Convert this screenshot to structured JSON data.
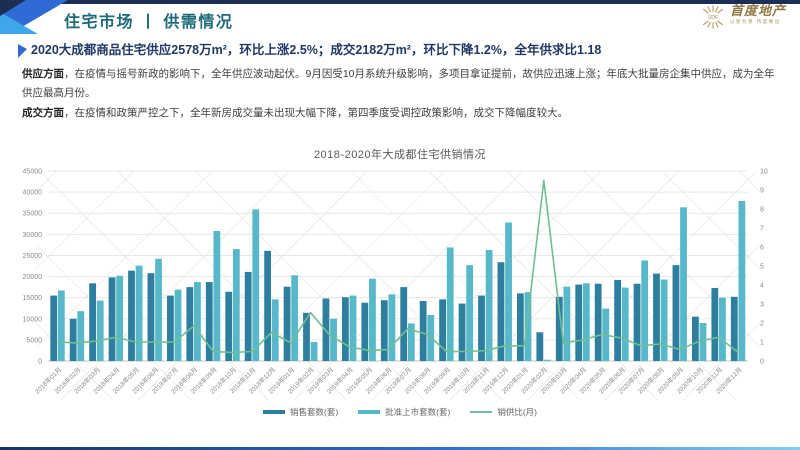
{
  "header": {
    "title": "住宅市场 丨 供需情况",
    "logo": {
      "emblem_text": "SDF",
      "name": "首度地产",
      "tagline": "以智为善  持度致远"
    }
  },
  "headline": "2020大成都商品住宅供应2578万m²，环比上涨2.5%；成交2182万m²，环比下降1.2%，全年供求比1.18",
  "paragraphs": [
    {
      "lead": "供应方面",
      "text": "，在疫情与摇号新政的影响下，全年供应波动起伏。9月因受10月系统升级影响，多项目拿证提前，故供应迅速上涨；年底大批量房企集中供应，成为全年供应最高月份。"
    },
    {
      "lead": "成交方面",
      "text": "，在疫情和政策严控之下，全年新房成交量未出现大幅下降，第四季度受调控政策影响，成交下降幅度较大。"
    }
  ],
  "chart_data": {
    "type": "bar",
    "subtype": "grouped bars + line on secondary axis",
    "title": "2018-2020年大成都住宅供销情况",
    "categories": [
      "2018年01月",
      "2018年02月",
      "2018年03月",
      "2018年04月",
      "2018年05月",
      "2018年06月",
      "2018年07月",
      "2018年08月",
      "2018年09月",
      "2018年10月",
      "2018年11月",
      "2018年12月",
      "2019年01月",
      "2019年02月",
      "2019年03月",
      "2019年04月",
      "2019年05月",
      "2019年06月",
      "2019年07月",
      "2019年08月",
      "2019年09月",
      "2019年10月",
      "2019年11月",
      "2019年12月",
      "2020年01月",
      "2020年02月",
      "2020年03月",
      "2020年04月",
      "2020年05月",
      "2020年06月",
      "2020年07月",
      "2020年08月",
      "2020年09月",
      "2020年10月",
      "2020年11月",
      "2020年12月"
    ],
    "series": [
      {
        "name": "销售套数(套)",
        "type": "bar",
        "axis": "left",
        "color": "#2e7f9d",
        "values": [
          15500,
          10000,
          18400,
          19800,
          21400,
          20800,
          15500,
          17500,
          18700,
          16400,
          21100,
          26100,
          17600,
          11400,
          14800,
          15100,
          13800,
          14400,
          17500,
          14200,
          14600,
          13600,
          15500,
          23400,
          16000,
          6800,
          15200,
          18100,
          18300,
          19200,
          18300,
          20700,
          22700,
          10500,
          17300,
          15200
        ]
      },
      {
        "name": "批准上市套数(套)",
        "type": "bar",
        "axis": "left",
        "color": "#57b8c9",
        "values": [
          16700,
          11800,
          14300,
          20200,
          22600,
          24200,
          16900,
          18700,
          30800,
          26500,
          35900,
          14600,
          20300,
          4500,
          10000,
          15500,
          19500,
          15800,
          8900,
          10900,
          26900,
          22700,
          26300,
          32800,
          16300,
          300,
          17600,
          18400,
          12400,
          17400,
          23800,
          19300,
          36400,
          9000,
          15000,
          37900
        ]
      },
      {
        "name": "销供比(月)",
        "type": "line",
        "axis": "right",
        "color": "#6fbf96",
        "values": [
          1.0,
          0.95,
          1.05,
          1.25,
          1.0,
          1.0,
          1.0,
          1.85,
          0.5,
          0.45,
          0.5,
          1.5,
          0.95,
          2.55,
          1.35,
          0.75,
          0.55,
          0.6,
          1.7,
          1.4,
          0.5,
          0.5,
          0.55,
          0.8,
          0.8,
          9.5,
          0.95,
          1.1,
          1.4,
          1.2,
          0.8,
          0.9,
          0.6,
          1.05,
          1.25,
          0.45
        ]
      }
    ],
    "left_axis": {
      "min": 0,
      "max": 45000,
      "step": 5000
    },
    "right_axis": {
      "min": 0,
      "max": 10,
      "step": 1
    },
    "grid": true,
    "legend_position": "bottom",
    "xlabel": "",
    "ylabel": ""
  },
  "colors": {
    "accent_navy": "#1c2e54",
    "accent_blue": "#2e6bd4",
    "accent_cyan": "#3ea7ea",
    "title_teal": "#1e6a78",
    "headline_navy": "#203864",
    "logo_gold": "#b2955a",
    "bar_dark": "#2e7f9d",
    "bar_light": "#57b8c9",
    "line_green": "#6fbf96"
  }
}
